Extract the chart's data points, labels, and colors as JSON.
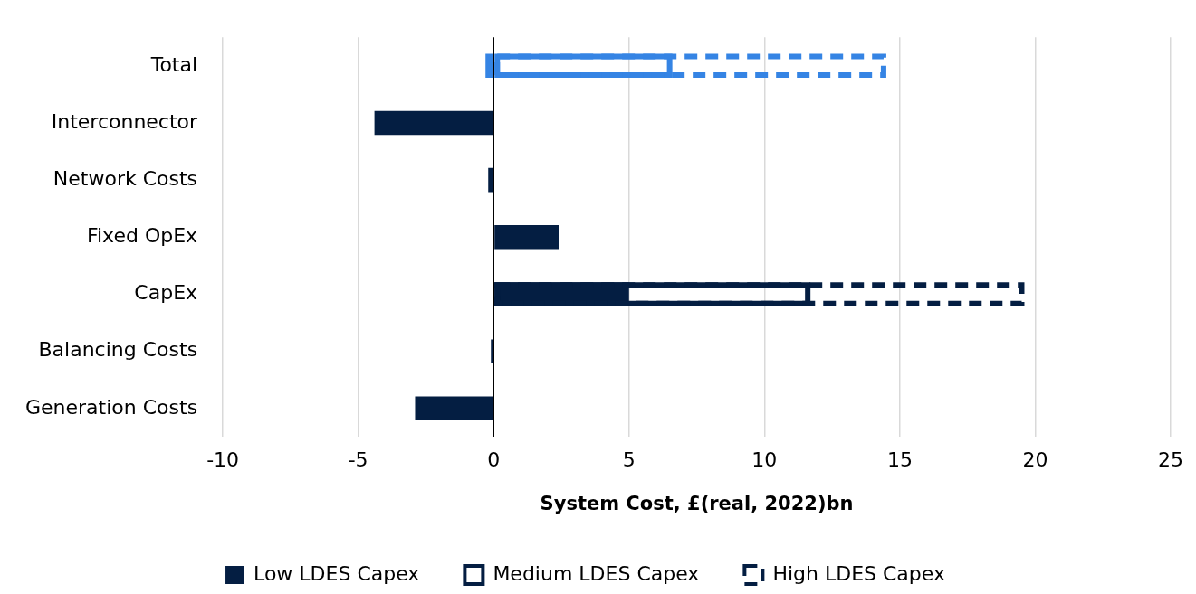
{
  "chart_data": {
    "type": "bar",
    "orientation": "horizontal",
    "xlabel": "System Cost, £(real, 2022)bn",
    "categories": [
      "Total",
      "Interconnector",
      "Network Costs",
      "Fixed OpEx",
      "CapEx",
      "Balancing Costs",
      "Generation Costs"
    ],
    "series": [
      {
        "name": "Low LDES Capex",
        "color": "#041e42",
        "colors": [
          "#3584e4",
          "#041e42",
          "#041e42",
          "#041e42",
          "#041e42",
          "#041e42",
          "#041e42"
        ],
        "values": [
          -0.3,
          -4.4,
          -0.2,
          2.4,
          5.0,
          -0.1,
          -2.9
        ]
      },
      {
        "name": "Medium LDES Capex",
        "color": "#041e42",
        "colors": [
          "#3584e4",
          "#041e42",
          "#041e42",
          "#041e42",
          "#041e42",
          "#041e42",
          "#041e42"
        ],
        "line_style": "solid",
        "values": [
          6.6,
          null,
          null,
          null,
          11.7,
          null,
          null
        ]
      },
      {
        "name": "High LDES Capex",
        "color": "#041e42",
        "colors": [
          "#3584e4",
          "#041e42",
          "#041e42",
          "#041e42",
          "#041e42",
          "#041e42",
          "#041e42"
        ],
        "line_style": "dashed",
        "values": [
          14.5,
          null,
          null,
          null,
          19.6,
          null,
          null
        ]
      }
    ],
    "xlim": [
      -10,
      25
    ],
    "xticks": [
      -10,
      -5,
      0,
      5,
      10,
      15,
      20,
      25
    ],
    "grid": "x",
    "legend": "bottom"
  }
}
